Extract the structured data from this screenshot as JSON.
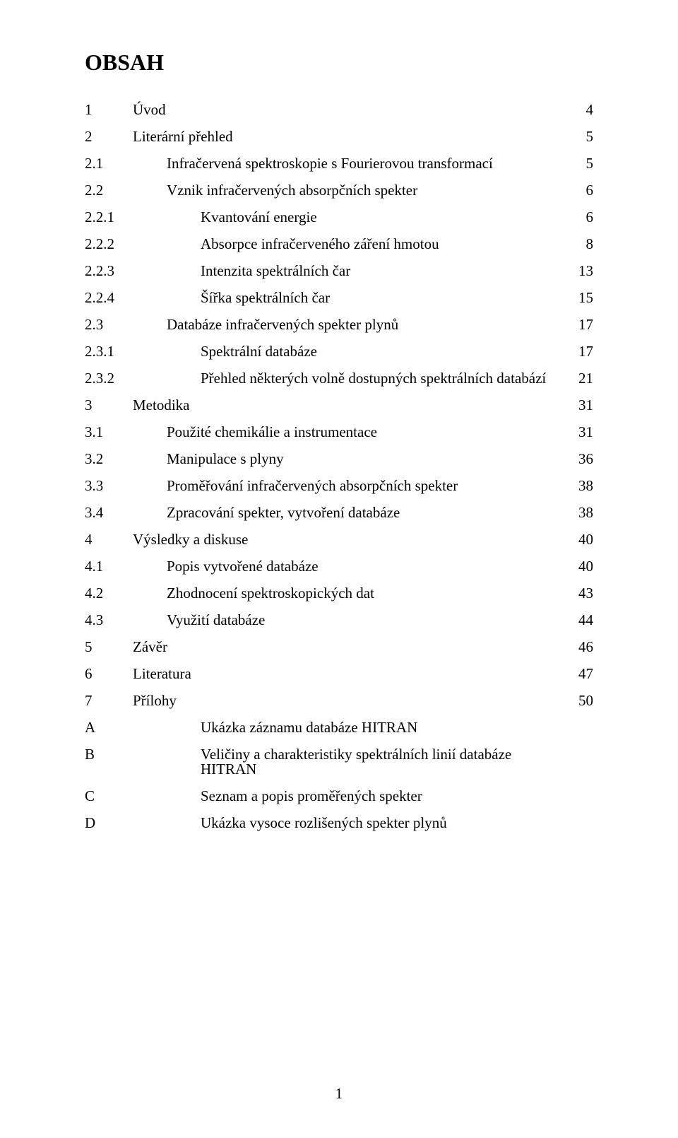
{
  "title": "OBSAH",
  "footer_page_number": "1",
  "entries": [
    {
      "indent": 0,
      "num": "1",
      "label": "Úvod",
      "page": "4"
    },
    {
      "indent": 0,
      "num": "2",
      "label": "Literární přehled",
      "page": "5"
    },
    {
      "indent": 1,
      "num": "2.1",
      "label": "Infračervená spektroskopie s Fourierovou transformací",
      "page": "5"
    },
    {
      "indent": 1,
      "num": "2.2",
      "label": "Vznik infračervených absorpčních spekter",
      "page": "6"
    },
    {
      "indent": 2,
      "num": "2.2.1",
      "label": "Kvantování energie",
      "page": "6"
    },
    {
      "indent": 2,
      "num": "2.2.2",
      "label": "Absorpce infračerveného záření hmotou",
      "page": "8"
    },
    {
      "indent": 2,
      "num": "2.2.3",
      "label": "Intenzita spektrálních čar",
      "page": "13"
    },
    {
      "indent": 2,
      "num": "2.2.4",
      "label": "Šířka spektrálních čar",
      "page": "15"
    },
    {
      "indent": 1,
      "num": "2.3",
      "label": "Databáze infračervených spekter plynů",
      "page": "17"
    },
    {
      "indent": 2,
      "num": "2.3.1",
      "label": "Spektrální databáze",
      "page": "17"
    },
    {
      "indent": 2,
      "num": "2.3.2",
      "label": "Přehled některých volně dostupných spektrálních databází",
      "page": "21"
    },
    {
      "indent": 0,
      "num": "3",
      "label": "Metodika",
      "page": "31"
    },
    {
      "indent": 1,
      "num": "3.1",
      "label": "Použité chemikálie a instrumentace",
      "page": "31"
    },
    {
      "indent": 1,
      "num": "3.2",
      "label": "Manipulace s plyny",
      "page": "36"
    },
    {
      "indent": 1,
      "num": "3.3",
      "label": "Proměřování infračervených absorpčních spekter",
      "page": "38"
    },
    {
      "indent": 1,
      "num": "3.4",
      "label": "Zpracování spekter, vytvoření databáze",
      "page": "38"
    },
    {
      "indent": 0,
      "num": "4",
      "label": "Výsledky a diskuse",
      "page": "40"
    },
    {
      "indent": 1,
      "num": "4.1",
      "label": "Popis vytvořené databáze",
      "page": "40"
    },
    {
      "indent": 1,
      "num": "4.2",
      "label": "Zhodnocení spektroskopických dat",
      "page": "43"
    },
    {
      "indent": 1,
      "num": "4.3",
      "label": "Využití databáze",
      "page": "44"
    },
    {
      "indent": 0,
      "num": "5",
      "label": "Závěr",
      "page": "46"
    },
    {
      "indent": 0,
      "num": "6",
      "label": "Literatura",
      "page": "47"
    },
    {
      "indent": 0,
      "num": "7",
      "label": "Přílohy",
      "page": "50"
    }
  ],
  "appendix": [
    {
      "letter": "A",
      "label": "Ukázka záznamu databáze HITRAN"
    },
    {
      "letter": "B",
      "label": "Veličiny a charakteristiky spektrálních linií databáze HITRAN"
    },
    {
      "letter": "C",
      "label": "Seznam a popis proměřených spekter"
    },
    {
      "letter": "D",
      "label": "Ukázka vysoce rozlišených spekter plynů"
    }
  ]
}
